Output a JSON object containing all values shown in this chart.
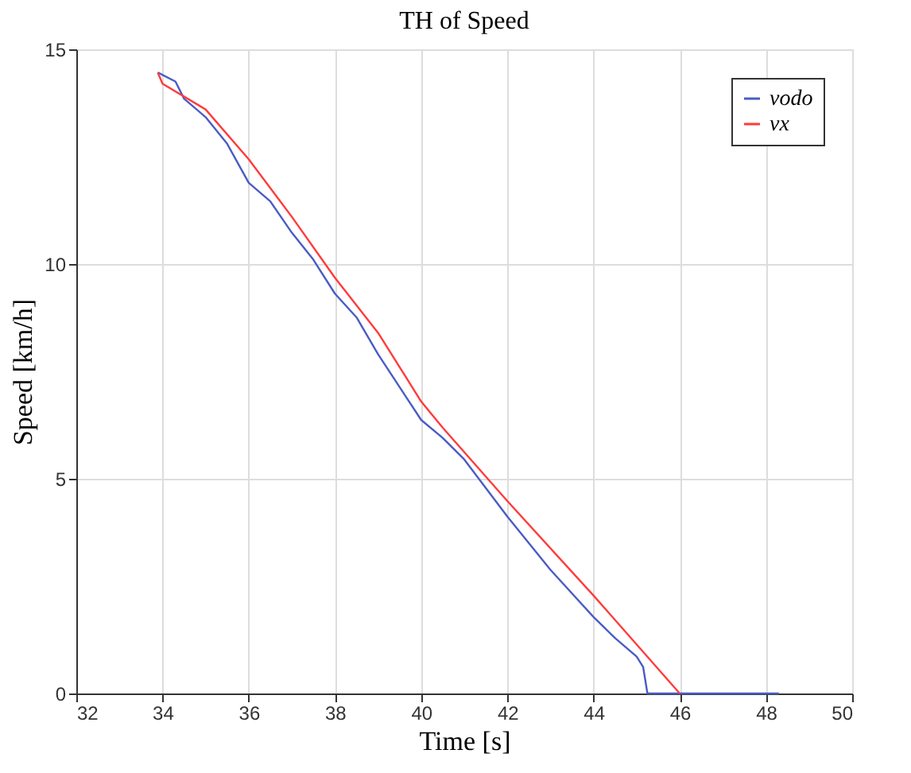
{
  "chart_data": {
    "type": "line",
    "title": "TH of Speed",
    "xlabel": "Time [s]",
    "ylabel": "Speed [km/h]",
    "series": [
      {
        "name": "vodo",
        "color": "#4a5cc4",
        "x": [
          33.89,
          34.3,
          34.5,
          35,
          35.5,
          36,
          36.5,
          37,
          37.5,
          38,
          38.5,
          39,
          40,
          40.5,
          41,
          42,
          43,
          44,
          44.5,
          45,
          45.15,
          45.25,
          48.3
        ],
        "values": [
          14.46,
          14.25,
          13.85,
          13.42,
          12.8,
          11.89,
          11.46,
          10.73,
          10.1,
          9.31,
          8.76,
          7.9,
          6.37,
          5.95,
          5.45,
          4.12,
          2.88,
          1.78,
          1.29,
          0.86,
          0.62,
          0,
          0
        ]
      },
      {
        "name": "vx",
        "color": "#ff3b3b",
        "x": [
          33.89,
          34,
          35,
          36,
          37,
          38,
          39,
          40,
          40.5,
          42,
          44,
          46
        ],
        "values": [
          14.46,
          14.2,
          13.6,
          12.44,
          11.1,
          9.68,
          8.4,
          6.8,
          6.19,
          4.48,
          2.28,
          0
        ]
      }
    ],
    "xlim": [
      32,
      50
    ],
    "xticks": [
      32,
      34,
      36,
      38,
      40,
      42,
      44,
      46,
      48,
      50
    ],
    "ylim": [
      0,
      15
    ],
    "yticks": [
      0,
      5,
      10,
      15
    ],
    "grid": true,
    "legend": "top right",
    "marker": "none",
    "line_style": "solid"
  }
}
